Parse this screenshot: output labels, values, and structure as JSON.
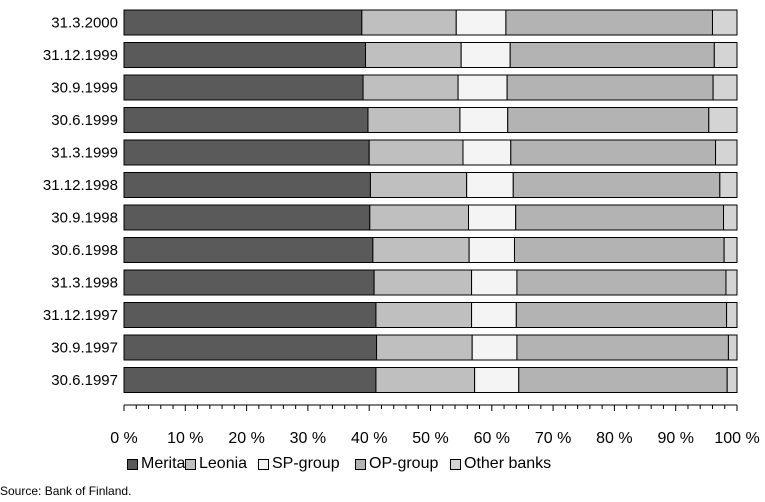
{
  "chart_data": {
    "type": "bar",
    "orientation": "horizontal",
    "stacked": true,
    "categories": [
      "31.3.2000",
      "31.12.1999",
      "30.9.1999",
      "30.6.1999",
      "31.3.1999",
      "31.12.1998",
      "30.9.1998",
      "30.6.1998",
      "31.3.1998",
      "31.12.1997",
      "30.9.1997",
      "30.6.1997"
    ],
    "series": [
      {
        "name": "Merita",
        "color": "#5a5a5a",
        "values": [
          38.8,
          39.4,
          39.0,
          39.8,
          40.0,
          40.2,
          40.1,
          40.6,
          40.8,
          41.1,
          41.2,
          41.1
        ]
      },
      {
        "name": "Leonia",
        "color": "#bfbfbf",
        "values": [
          15.4,
          15.6,
          15.5,
          15.0,
          15.3,
          15.7,
          16.1,
          15.7,
          15.9,
          15.6,
          15.6,
          16.1
        ]
      },
      {
        "name": "SP-group",
        "color": "#f4f4f4",
        "values": [
          8.1,
          8.0,
          8.0,
          7.8,
          7.8,
          7.6,
          7.7,
          7.4,
          7.4,
          7.3,
          7.3,
          7.2
        ]
      },
      {
        "name": "OP-group",
        "color": "#b3b3b3",
        "values": [
          33.7,
          33.3,
          33.6,
          32.8,
          33.4,
          33.7,
          33.9,
          34.2,
          34.1,
          34.3,
          34.5,
          34.0
        ]
      },
      {
        "name": "Other banks",
        "color": "#d4d4d4",
        "values": [
          4.0,
          3.7,
          3.9,
          4.6,
          3.5,
          2.8,
          2.2,
          2.1,
          1.8,
          1.7,
          1.4,
          1.6
        ]
      }
    ],
    "xlim": [
      0,
      100
    ],
    "x_ticks": [
      "0 %",
      "10 %",
      "20 %",
      "30 %",
      "40 %",
      "50 %",
      "60 %",
      "70 %",
      "80 %",
      "90 %",
      "100 %"
    ],
    "grid": false,
    "legend_position": "bottom"
  },
  "source": "Source: Bank of Finland."
}
